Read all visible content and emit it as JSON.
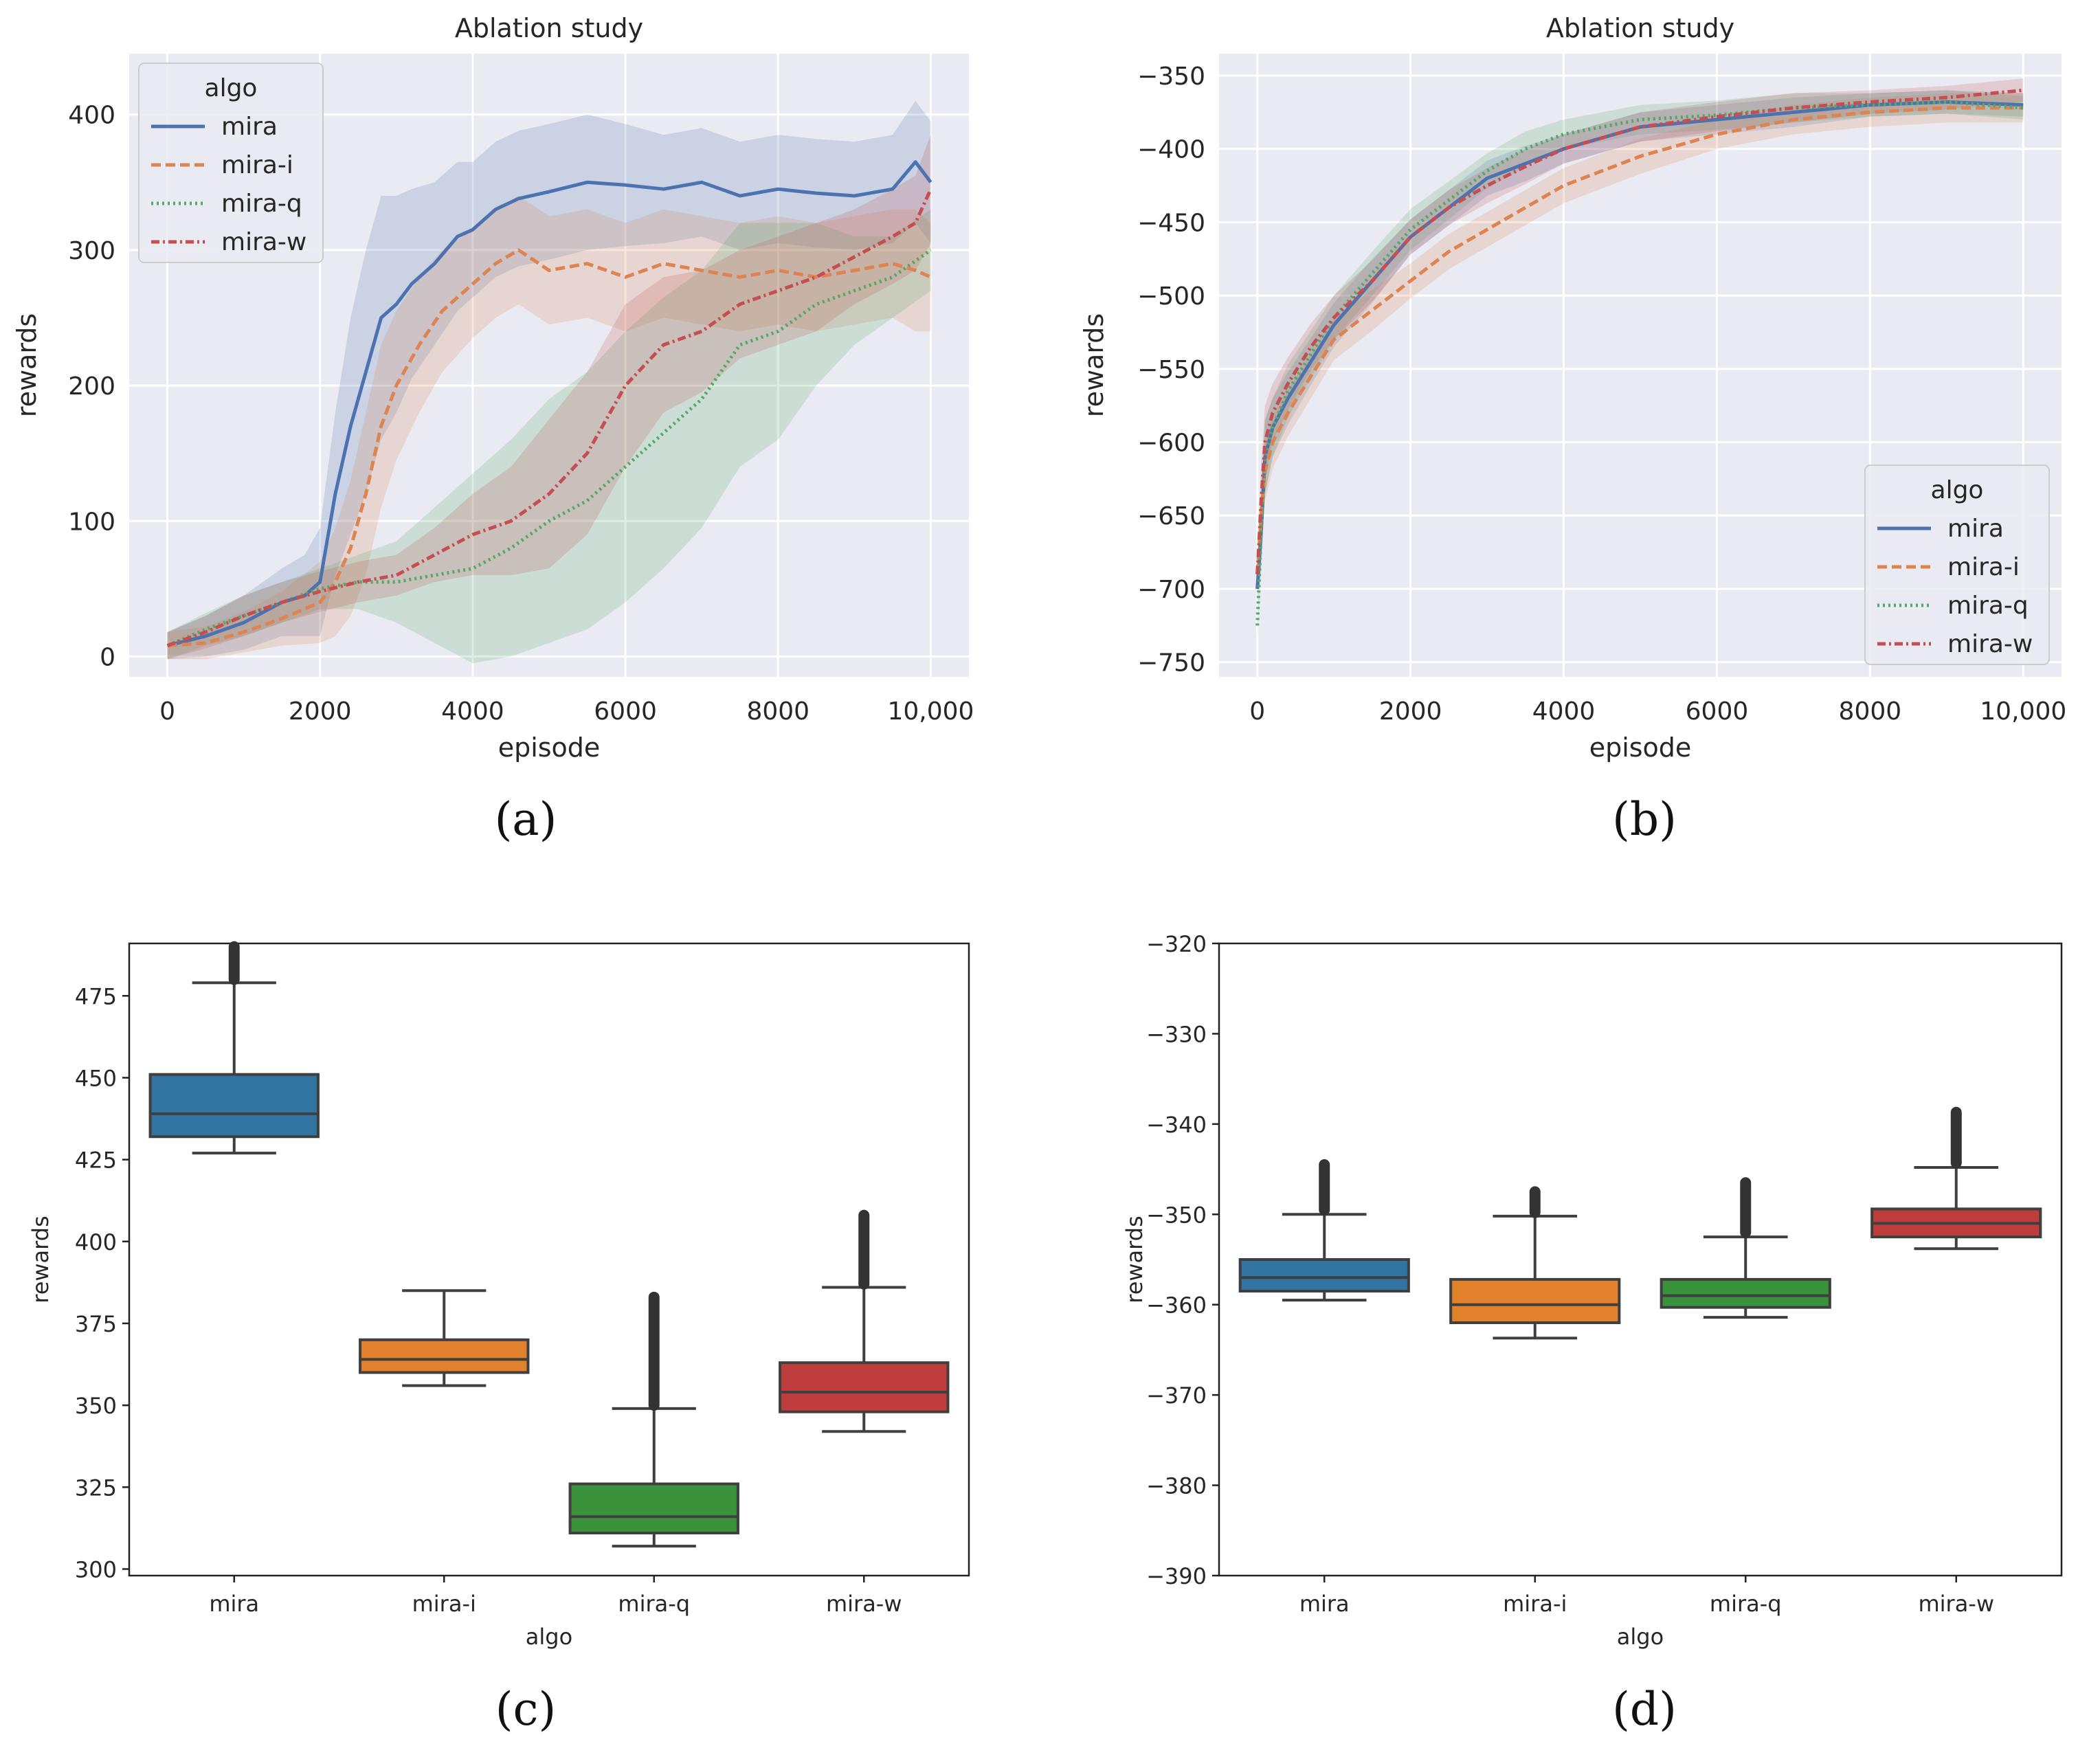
{
  "chart_data": [
    {
      "panel_label": "(a)",
      "type": "line",
      "title": "Ablation study",
      "xlabel": "episode",
      "ylabel": "rewards",
      "xlim": [
        -500,
        10500
      ],
      "ylim": [
        -15,
        445
      ],
      "xticks": [
        0,
        2000,
        4000,
        6000,
        8000,
        10000
      ],
      "xtick_labels": [
        "0",
        "2000",
        "4000",
        "6000",
        "8000",
        "10,000"
      ],
      "yticks": [
        0,
        100,
        200,
        300,
        400
      ],
      "ytick_labels": [
        "0",
        "100",
        "200",
        "300",
        "400"
      ],
      "grid": true,
      "legend": {
        "title": "algo",
        "placement": "top-left"
      },
      "series": [
        {
          "name": "mira",
          "color": "#4c72b0",
          "dash": "solid",
          "x": [
            0,
            500,
            1000,
            1500,
            1800,
            2000,
            2200,
            2400,
            2600,
            2800,
            3000,
            3200,
            3500,
            3800,
            4000,
            4300,
            4600,
            5000,
            5500,
            6000,
            6500,
            7000,
            7500,
            8000,
            8500,
            9000,
            9500,
            9800,
            10000
          ],
          "y": [
            8,
            15,
            25,
            40,
            45,
            55,
            120,
            170,
            210,
            250,
            260,
            275,
            290,
            310,
            315,
            330,
            338,
            343,
            350,
            348,
            345,
            350,
            340,
            345,
            342,
            340,
            345,
            365,
            350
          ],
          "band": [
            10,
            15,
            20,
            25,
            30,
            40,
            60,
            80,
            90,
            90,
            80,
            70,
            60,
            55,
            50,
            50,
            50,
            50,
            50,
            45,
            40,
            40,
            40,
            40,
            40,
            40,
            40,
            45,
            45
          ]
        },
        {
          "name": "mira-i",
          "color": "#dd8452",
          "dash": "dashed",
          "x": [
            0,
            500,
            1000,
            1500,
            2000,
            2200,
            2400,
            2600,
            2800,
            3000,
            3300,
            3600,
            4000,
            4300,
            4600,
            5000,
            5500,
            6000,
            6500,
            7000,
            7500,
            8000,
            8500,
            9000,
            9500,
            9800,
            10000
          ],
          "y": [
            8,
            10,
            18,
            28,
            40,
            55,
            80,
            120,
            170,
            200,
            230,
            255,
            275,
            290,
            300,
            285,
            290,
            280,
            290,
            285,
            280,
            285,
            280,
            285,
            290,
            285,
            280
          ],
          "band": [
            10,
            12,
            15,
            20,
            30,
            40,
            50,
            60,
            60,
            55,
            50,
            45,
            40,
            40,
            40,
            40,
            40,
            40,
            40,
            40,
            40,
            40,
            40,
            40,
            40,
            45,
            40
          ]
        },
        {
          "name": "mira-q",
          "color": "#55a868",
          "dash": "dotted",
          "x": [
            0,
            500,
            1000,
            1500,
            2000,
            2500,
            3000,
            3500,
            4000,
            4500,
            5000,
            5500,
            6000,
            6500,
            7000,
            7500,
            8000,
            8500,
            9000,
            9500,
            10000
          ],
          "y": [
            8,
            20,
            30,
            40,
            50,
            55,
            55,
            60,
            65,
            80,
            100,
            115,
            140,
            165,
            190,
            230,
            240,
            260,
            270,
            280,
            300
          ],
          "band": [
            10,
            12,
            15,
            15,
            15,
            20,
            30,
            50,
            70,
            80,
            90,
            95,
            100,
            100,
            95,
            90,
            80,
            60,
            40,
            30,
            30
          ]
        },
        {
          "name": "mira-w",
          "color": "#c44e52",
          "dash": "dashdot",
          "x": [
            0,
            500,
            1000,
            1500,
            2000,
            2500,
            3000,
            3500,
            4000,
            4500,
            5000,
            5500,
            6000,
            6500,
            7000,
            7500,
            8000,
            8500,
            9000,
            9500,
            9800,
            10000
          ],
          "y": [
            8,
            18,
            30,
            40,
            48,
            55,
            60,
            75,
            90,
            100,
            120,
            150,
            200,
            230,
            240,
            260,
            270,
            280,
            295,
            310,
            320,
            345
          ],
          "band": [
            10,
            12,
            15,
            15,
            15,
            15,
            15,
            20,
            30,
            40,
            55,
            60,
            60,
            50,
            45,
            40,
            40,
            40,
            35,
            35,
            35,
            40
          ]
        }
      ]
    },
    {
      "panel_label": "(b)",
      "type": "line",
      "title": "Ablation study",
      "xlabel": "episode",
      "ylabel": "rewards",
      "xlim": [
        -500,
        10500
      ],
      "ylim": [
        -760,
        -335
      ],
      "xticks": [
        0,
        2000,
        4000,
        6000,
        8000,
        10000
      ],
      "xtick_labels": [
        "0",
        "2000",
        "4000",
        "6000",
        "8000",
        "10,000"
      ],
      "yticks": [
        -350,
        -400,
        -450,
        -500,
        -550,
        -600,
        -650,
        -700,
        -750
      ],
      "ytick_labels": [
        "−350",
        "−400",
        "−450",
        "−500",
        "−550",
        "−600",
        "−650",
        "−700",
        "−750"
      ],
      "grid": true,
      "legend": {
        "title": "algo",
        "placement": "bottom-right"
      },
      "series": [
        {
          "name": "mira",
          "color": "#4c72b0",
          "dash": "solid",
          "x": [
            0,
            50,
            100,
            200,
            400,
            700,
            1000,
            1500,
            2000,
            2500,
            3000,
            3500,
            4000,
            5000,
            6000,
            7000,
            8000,
            9000,
            10000
          ],
          "y": [
            -700,
            -660,
            -610,
            -590,
            -570,
            -545,
            -520,
            -490,
            -460,
            -440,
            -420,
            -410,
            -400,
            -385,
            -380,
            -375,
            -370,
            -368,
            -370
          ],
          "band": [
            10,
            25,
            25,
            20,
            18,
            16,
            15,
            15,
            12,
            12,
            12,
            12,
            10,
            10,
            10,
            10,
            8,
            8,
            8
          ]
        },
        {
          "name": "mira-i",
          "color": "#dd8452",
          "dash": "dashed",
          "x": [
            0,
            50,
            100,
            200,
            400,
            700,
            1000,
            1500,
            2000,
            2500,
            3000,
            3500,
            4000,
            5000,
            6000,
            7000,
            8000,
            9000,
            10000
          ],
          "y": [
            -690,
            -650,
            -620,
            -600,
            -580,
            -555,
            -530,
            -510,
            -490,
            -470,
            -455,
            -440,
            -425,
            -405,
            -390,
            -380,
            -375,
            -372,
            -372
          ],
          "band": [
            10,
            20,
            20,
            18,
            16,
            15,
            14,
            14,
            12,
            12,
            12,
            12,
            12,
            12,
            10,
            10,
            10,
            10,
            10
          ]
        },
        {
          "name": "mira-q",
          "color": "#55a868",
          "dash": "dotted",
          "x": [
            0,
            50,
            100,
            200,
            400,
            700,
            1000,
            1500,
            2000,
            2500,
            3000,
            3500,
            4000,
            5000,
            6000,
            7000,
            8000,
            9000,
            10000
          ],
          "y": [
            -725,
            -660,
            -610,
            -590,
            -565,
            -540,
            -515,
            -485,
            -455,
            -435,
            -415,
            -400,
            -390,
            -380,
            -377,
            -372,
            -370,
            -368,
            -372
          ],
          "band": [
            10,
            25,
            25,
            20,
            18,
            16,
            15,
            15,
            14,
            13,
            12,
            12,
            10,
            10,
            10,
            10,
            8,
            8,
            8
          ]
        },
        {
          "name": "mira-w",
          "color": "#c44e52",
          "dash": "dashdot",
          "x": [
            0,
            50,
            100,
            200,
            400,
            700,
            1000,
            1500,
            2000,
            2500,
            3000,
            3500,
            4000,
            5000,
            6000,
            7000,
            8000,
            9000,
            10000
          ],
          "y": [
            -690,
            -640,
            -600,
            -580,
            -560,
            -535,
            -515,
            -490,
            -460,
            -440,
            -425,
            -412,
            -400,
            -385,
            -378,
            -372,
            -368,
            -365,
            -360
          ],
          "band": [
            10,
            25,
            25,
            20,
            18,
            16,
            15,
            14,
            12,
            12,
            12,
            12,
            10,
            10,
            10,
            10,
            8,
            8,
            8
          ]
        }
      ]
    },
    {
      "panel_label": "(c)",
      "type": "box",
      "title": "",
      "xlabel": "algo",
      "ylabel": "rewards",
      "ylim": [
        298,
        491
      ],
      "yticks": [
        300,
        325,
        350,
        375,
        400,
        425,
        450,
        475
      ],
      "ytick_labels": [
        "300",
        "325",
        "350",
        "375",
        "400",
        "425",
        "450",
        "475"
      ],
      "grid": false,
      "categories": [
        "mira",
        "mira-i",
        "mira-q",
        "mira-w"
      ],
      "boxes": [
        {
          "color": "#3274a1",
          "whislo": 427,
          "q1": 432,
          "med": 439,
          "q3": 451,
          "whishi": 479,
          "outlier_lo": 480,
          "outlier_hi": 490
        },
        {
          "color": "#e1812c",
          "whislo": 356,
          "q1": 360,
          "med": 364,
          "q3": 370,
          "whishi": 385,
          "outlier_lo": null,
          "outlier_hi": null
        },
        {
          "color": "#3a923a",
          "whislo": 307,
          "q1": 311,
          "med": 316,
          "q3": 326,
          "whishi": 349,
          "outlier_lo": 350,
          "outlier_hi": 383
        },
        {
          "color": "#c03d3e",
          "whislo": 342,
          "q1": 348,
          "med": 354,
          "q3": 363,
          "whishi": 386,
          "outlier_lo": 387,
          "outlier_hi": 408
        }
      ]
    },
    {
      "panel_label": "(d)",
      "type": "box",
      "title": "",
      "xlabel": "algo",
      "ylabel": "rewards",
      "ylim": [
        -390,
        -320
      ],
      "yticks": [
        -320,
        -330,
        -340,
        -350,
        -360,
        -370,
        -380,
        -390
      ],
      "ytick_labels": [
        "−320",
        "−330",
        "−340",
        "−350",
        "−360",
        "−370",
        "−380",
        "−390"
      ],
      "grid": false,
      "categories": [
        "mira",
        "mira-i",
        "mira-q",
        "mira-w"
      ],
      "boxes": [
        {
          "color": "#3274a1",
          "whislo": -359.5,
          "q1": -358.5,
          "med": -357,
          "q3": -355,
          "whishi": -350,
          "outlier_lo": -349.5,
          "outlier_hi": -344.5
        },
        {
          "color": "#e1812c",
          "whislo": -363.7,
          "q1": -362,
          "med": -360,
          "q3": -357.2,
          "whishi": -350.2,
          "outlier_lo": -349.8,
          "outlier_hi": -347.5
        },
        {
          "color": "#3a923a",
          "whislo": -361.4,
          "q1": -360.3,
          "med": -359,
          "q3": -357.2,
          "whishi": -352.5,
          "outlier_lo": -352,
          "outlier_hi": -346.5
        },
        {
          "color": "#c03d3e",
          "whislo": -353.8,
          "q1": -352.5,
          "med": -351,
          "q3": -349.4,
          "whishi": -344.8,
          "outlier_lo": -344.3,
          "outlier_hi": -338.7
        }
      ]
    }
  ]
}
